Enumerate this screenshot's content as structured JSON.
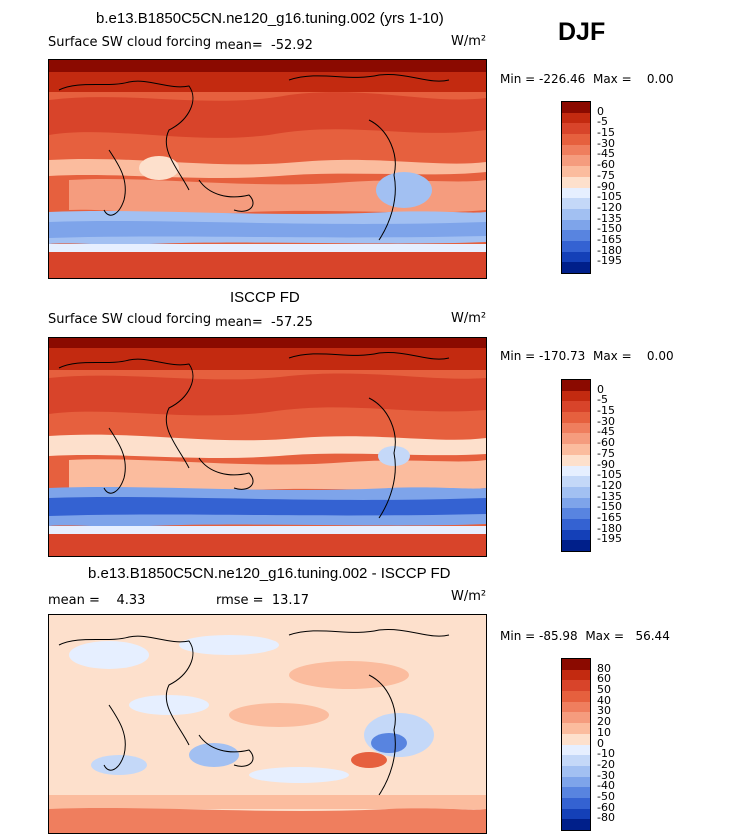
{
  "season": "DJF",
  "chart_data": [
    {
      "type": "heatmap",
      "title": "b.e13.B1850C5CN.ne120_g16.tuning.002 (yrs 1-10)",
      "variable": "Surface SW cloud forcing",
      "mean_label": "mean=",
      "mean": "-52.92",
      "units": "W/m²",
      "min_label": "Min =",
      "min": "-226.46",
      "max_label": "Max =",
      "max": "0.00",
      "levels": [
        "0",
        "-5",
        "-15",
        "-30",
        "-45",
        "-60",
        "-75",
        "-90",
        "-105",
        "-120",
        "-135",
        "-150",
        "-165",
        "-180",
        "-195"
      ],
      "colors": [
        "#8b0a00",
        "#c32a10",
        "#d8442a",
        "#e6603e",
        "#ef7e5e",
        "#f59c7e",
        "#fbbc9e",
        "#fde0cc",
        "#e6efff",
        "#c4d8f8",
        "#a2c0f2",
        "#7ea4ea",
        "#5884e0",
        "#3462d2",
        "#1440b8",
        "#001f8a"
      ]
    },
    {
      "type": "heatmap",
      "title": "ISCCP FD",
      "variable": "Surface SW cloud forcing",
      "mean_label": "mean=",
      "mean": "-57.25",
      "units": "W/m²",
      "min_label": "Min =",
      "min": "-170.73",
      "max_label": "Max =",
      "max": "0.00",
      "levels": [
        "0",
        "-5",
        "-15",
        "-30",
        "-45",
        "-60",
        "-75",
        "-90",
        "-105",
        "-120",
        "-135",
        "-150",
        "-165",
        "-180",
        "-195"
      ],
      "colors": [
        "#8b0a00",
        "#c32a10",
        "#d8442a",
        "#e6603e",
        "#ef7e5e",
        "#f59c7e",
        "#fbbc9e",
        "#fde0cc",
        "#e6efff",
        "#c4d8f8",
        "#a2c0f2",
        "#7ea4ea",
        "#5884e0",
        "#3462d2",
        "#1440b8",
        "#001f8a"
      ]
    },
    {
      "type": "heatmap",
      "title": "b.e13.B1850C5CN.ne120_g16.tuning.002 - ISCCP FD",
      "mean_label": "mean =",
      "mean": "4.33",
      "rmse_label": "rmse =",
      "rmse": "13.17",
      "units": "W/m²",
      "min_label": "Min =",
      "min": "-85.98",
      "max_label": "Max =",
      "max": "56.44",
      "levels": [
        "80",
        "60",
        "50",
        "40",
        "30",
        "20",
        "10",
        "0",
        "-10",
        "-20",
        "-30",
        "-40",
        "-50",
        "-60",
        "-80"
      ],
      "colors": [
        "#8b0a00",
        "#c32a10",
        "#d8442a",
        "#e6603e",
        "#ef7e5e",
        "#f59c7e",
        "#fbbc9e",
        "#fde0cc",
        "#e6efff",
        "#c4d8f8",
        "#a2c0f2",
        "#7ea4ea",
        "#5884e0",
        "#3462d2",
        "#1440b8",
        "#001f8a"
      ]
    }
  ]
}
